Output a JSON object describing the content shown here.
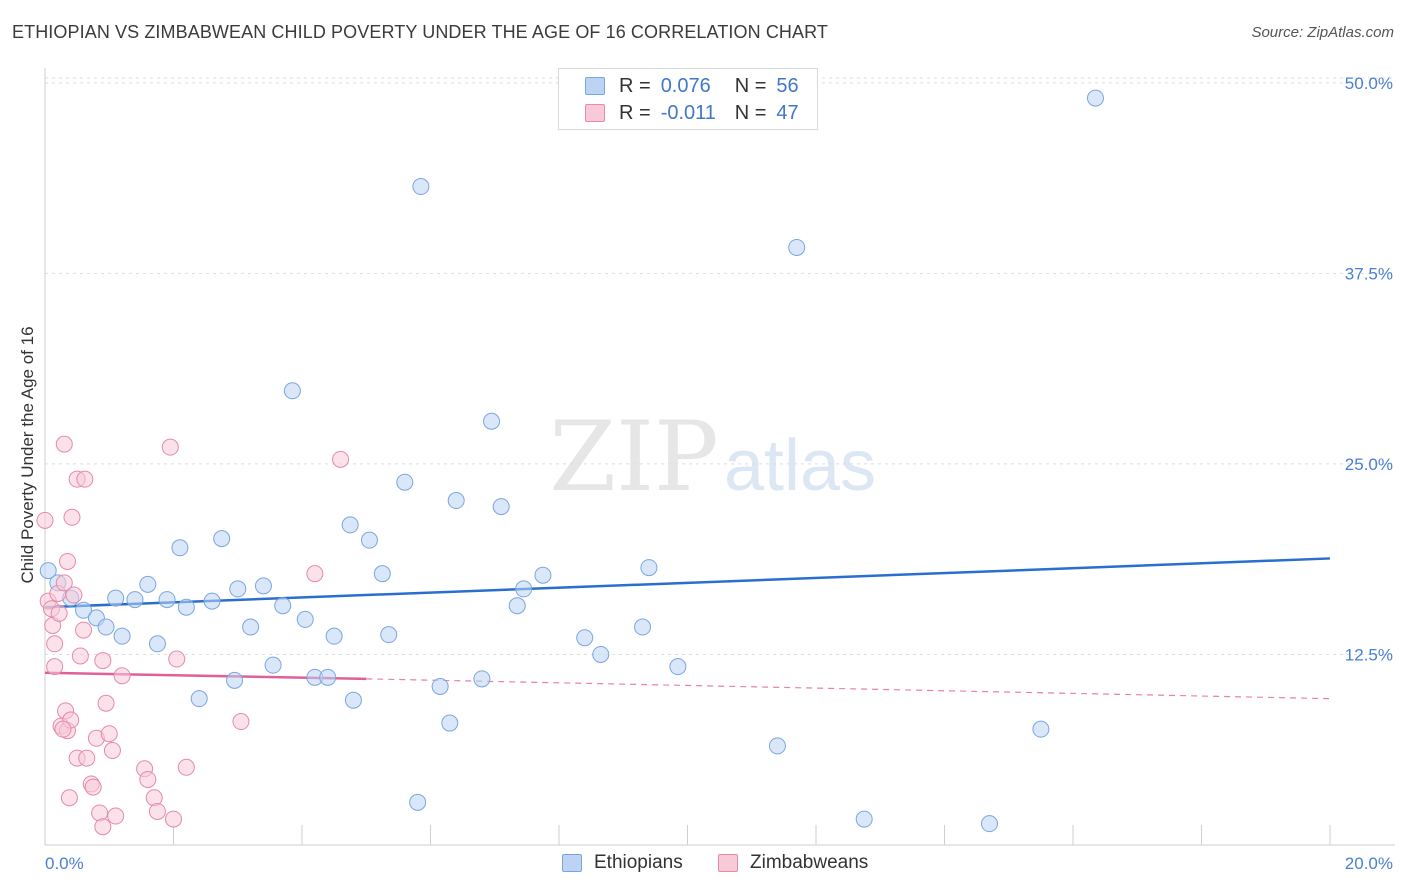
{
  "title": "ETHIOPIAN VS ZIMBABWEAN CHILD POVERTY UNDER THE AGE OF 16 CORRELATION CHART",
  "source": "Source: ZipAtlas.com",
  "watermark": {
    "zip": "ZIP",
    "atlas": "atlas"
  },
  "legend": {
    "rows": [
      {
        "r_label": "R =",
        "r_value": "0.076",
        "n_label": "N =",
        "n_value": "56",
        "color": "#a9c8f0"
      },
      {
        "r_label": "R =",
        "r_value": "-0.011",
        "n_label": "N =",
        "n_value": "47",
        "color": "#f6b6cb"
      }
    ]
  },
  "bottom_legend": [
    {
      "label": "Ethiopians",
      "color": "#a9c8f0"
    },
    {
      "label": "Zimbabweans",
      "color": "#f6b6cb"
    }
  ],
  "colors": {
    "ethiopian_fill": "#bcd3f3",
    "ethiopian_stroke": "#7aa6e0",
    "ethiopian_line": "#2a6fcf",
    "zimbabwean_fill": "#f8cad8",
    "zimbabwean_stroke": "#e58aa9",
    "zimbabwean_line": "#e0609a",
    "tick_text": "#4a7fd1",
    "grid": "#dddddd"
  },
  "chart_data": {
    "type": "scatter",
    "title": "ETHIOPIAN VS ZIMBABWEAN CHILD POVERTY UNDER THE AGE OF 16 CORRELATION CHART",
    "xlabel": "",
    "ylabel": "Child Poverty Under the Age of 16",
    "xlim": [
      0,
      20
    ],
    "ylim": [
      0,
      51.5
    ],
    "x_tick_labels": [
      "0.0%",
      "20.0%"
    ],
    "y_ticks": [
      12.5,
      25.0,
      37.5,
      50.0
    ],
    "y_tick_labels": [
      "12.5%",
      "25.0%",
      "37.5%",
      "50.0%"
    ],
    "grid": true,
    "legend_position": "top-center",
    "series": [
      {
        "name": "Ethiopians",
        "r": 0.076,
        "n": 56,
        "trend": {
          "x0": 0,
          "y0": 15.6,
          "x1": 20,
          "y1": 18.8
        },
        "points": [
          [
            0.05,
            18.0
          ],
          [
            0.2,
            17.2
          ],
          [
            0.4,
            16.2
          ],
          [
            0.6,
            15.4
          ],
          [
            0.8,
            14.9
          ],
          [
            0.95,
            14.3
          ],
          [
            1.1,
            16.2
          ],
          [
            1.2,
            13.7
          ],
          [
            1.4,
            16.1
          ],
          [
            1.6,
            17.1
          ],
          [
            1.75,
            13.2
          ],
          [
            1.9,
            16.1
          ],
          [
            2.1,
            19.5
          ],
          [
            2.2,
            15.6
          ],
          [
            2.4,
            9.6
          ],
          [
            2.6,
            16.0
          ],
          [
            2.75,
            20.1
          ],
          [
            2.95,
            10.8
          ],
          [
            3.0,
            16.8
          ],
          [
            3.2,
            14.3
          ],
          [
            3.4,
            17.0
          ],
          [
            3.55,
            11.8
          ],
          [
            3.7,
            15.7
          ],
          [
            3.85,
            29.8
          ],
          [
            4.05,
            14.8
          ],
          [
            4.2,
            11.0
          ],
          [
            4.4,
            11.0
          ],
          [
            4.5,
            13.7
          ],
          [
            4.75,
            21.0
          ],
          [
            4.8,
            9.5
          ],
          [
            5.05,
            20.0
          ],
          [
            5.25,
            17.8
          ],
          [
            5.35,
            13.8
          ],
          [
            5.6,
            23.8
          ],
          [
            5.8,
            2.8
          ],
          [
            5.85,
            43.2
          ],
          [
            6.15,
            10.4
          ],
          [
            6.3,
            8.0
          ],
          [
            6.4,
            22.6
          ],
          [
            6.8,
            10.9
          ],
          [
            6.95,
            27.8
          ],
          [
            7.1,
            22.2
          ],
          [
            7.35,
            15.7
          ],
          [
            7.45,
            16.8
          ],
          [
            7.75,
            17.7
          ],
          [
            8.4,
            13.6
          ],
          [
            8.65,
            12.5
          ],
          [
            9.3,
            14.3
          ],
          [
            9.4,
            18.2
          ],
          [
            9.85,
            11.7
          ],
          [
            11.4,
            6.5
          ],
          [
            11.7,
            39.2
          ],
          [
            12.75,
            1.7
          ],
          [
            14.7,
            1.4
          ],
          [
            15.5,
            7.6
          ],
          [
            16.35,
            49.0
          ]
        ]
      },
      {
        "name": "Zimbabweans",
        "r": -0.011,
        "n": 47,
        "trend": {
          "x0": 0,
          "y0": 11.3,
          "x1": 5.0,
          "y1": 10.9
        },
        "trend_dashed": {
          "x0": 5.0,
          "y0": 10.9,
          "x1": 20,
          "y1": 9.6
        },
        "points": [
          [
            0.0,
            21.3
          ],
          [
            0.05,
            16.0
          ],
          [
            0.1,
            15.5
          ],
          [
            0.12,
            14.4
          ],
          [
            0.15,
            11.7
          ],
          [
            0.15,
            13.2
          ],
          [
            0.2,
            16.5
          ],
          [
            0.22,
            15.2
          ],
          [
            0.25,
            7.8
          ],
          [
            0.3,
            26.3
          ],
          [
            0.3,
            17.2
          ],
          [
            0.32,
            8.8
          ],
          [
            0.35,
            7.5
          ],
          [
            0.35,
            18.6
          ],
          [
            0.38,
            3.1
          ],
          [
            0.4,
            8.2
          ],
          [
            0.42,
            21.5
          ],
          [
            0.45,
            16.4
          ],
          [
            0.5,
            5.7
          ],
          [
            0.5,
            24.0
          ],
          [
            0.55,
            12.4
          ],
          [
            0.62,
            24.0
          ],
          [
            0.65,
            5.7
          ],
          [
            0.72,
            4.0
          ],
          [
            0.75,
            3.8
          ],
          [
            0.8,
            7.0
          ],
          [
            0.85,
            2.1
          ],
          [
            0.9,
            1.2
          ],
          [
            0.9,
            12.1
          ],
          [
            0.95,
            9.3
          ],
          [
            1.0,
            7.3
          ],
          [
            1.05,
            6.2
          ],
          [
            1.1,
            1.9
          ],
          [
            1.2,
            11.1
          ],
          [
            1.55,
            5.0
          ],
          [
            1.6,
            4.3
          ],
          [
            1.7,
            3.1
          ],
          [
            1.75,
            2.2
          ],
          [
            1.95,
            26.1
          ],
          [
            2.0,
            1.7
          ],
          [
            2.05,
            12.2
          ],
          [
            2.2,
            5.1
          ],
          [
            3.05,
            8.1
          ],
          [
            4.2,
            17.8
          ],
          [
            4.6,
            25.3
          ],
          [
            0.28,
            7.6
          ],
          [
            0.6,
            14.1
          ]
        ]
      }
    ]
  }
}
